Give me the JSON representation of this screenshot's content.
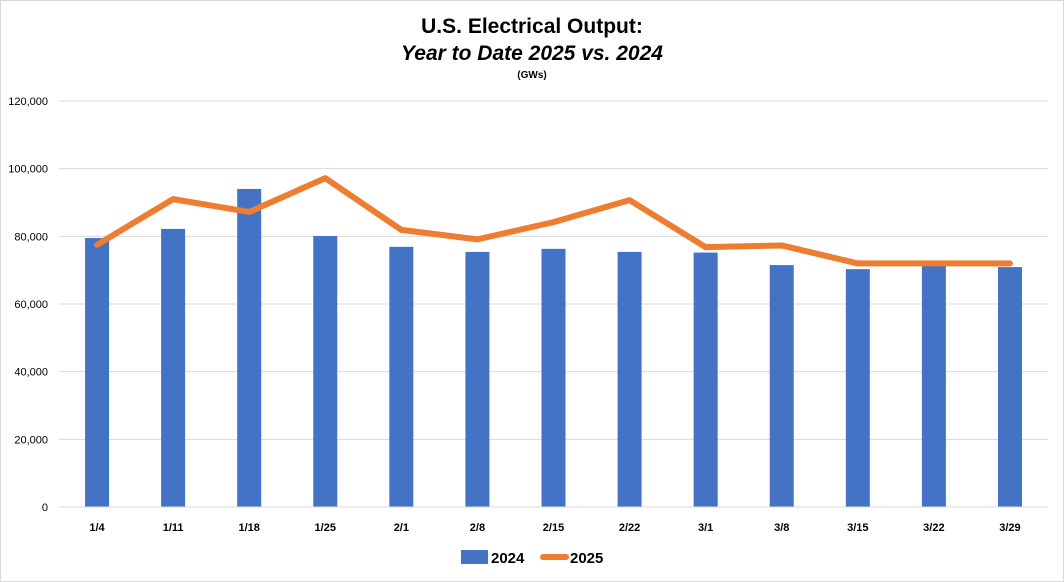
{
  "chart_data": {
    "type": "bar",
    "title": "U.S. Electrical Output:",
    "subtitle": "Year to Date 2025 vs. 2024",
    "unit_label": "(GWs)",
    "categories": [
      "1/4",
      "1/11",
      "1/18",
      "1/25",
      "2/1",
      "2/8",
      "2/15",
      "2/22",
      "3/1",
      "3/8",
      "3/15",
      "3/22",
      "3/29"
    ],
    "series": [
      {
        "name": "2024",
        "type": "bar",
        "color": "#4472c4",
        "values": [
          79500,
          82200,
          94000,
          80100,
          76900,
          75400,
          76300,
          75400,
          75200,
          71500,
          70300,
          71500,
          70900
        ]
      },
      {
        "name": "2025",
        "type": "line",
        "color": "#ed7d31",
        "values": [
          77500,
          91000,
          87200,
          97200,
          81900,
          79100,
          84200,
          90700,
          76800,
          77300,
          72000,
          72000,
          72000
        ]
      }
    ],
    "ylim": [
      0,
      120000
    ],
    "yticks": [
      0,
      20000,
      40000,
      60000,
      80000,
      100000,
      120000
    ],
    "ytick_labels": [
      "0",
      "20,000",
      "40,000",
      "60,000",
      "80,000",
      "100,000",
      "120,000"
    ],
    "grid": true,
    "legend_position": "bottom"
  }
}
